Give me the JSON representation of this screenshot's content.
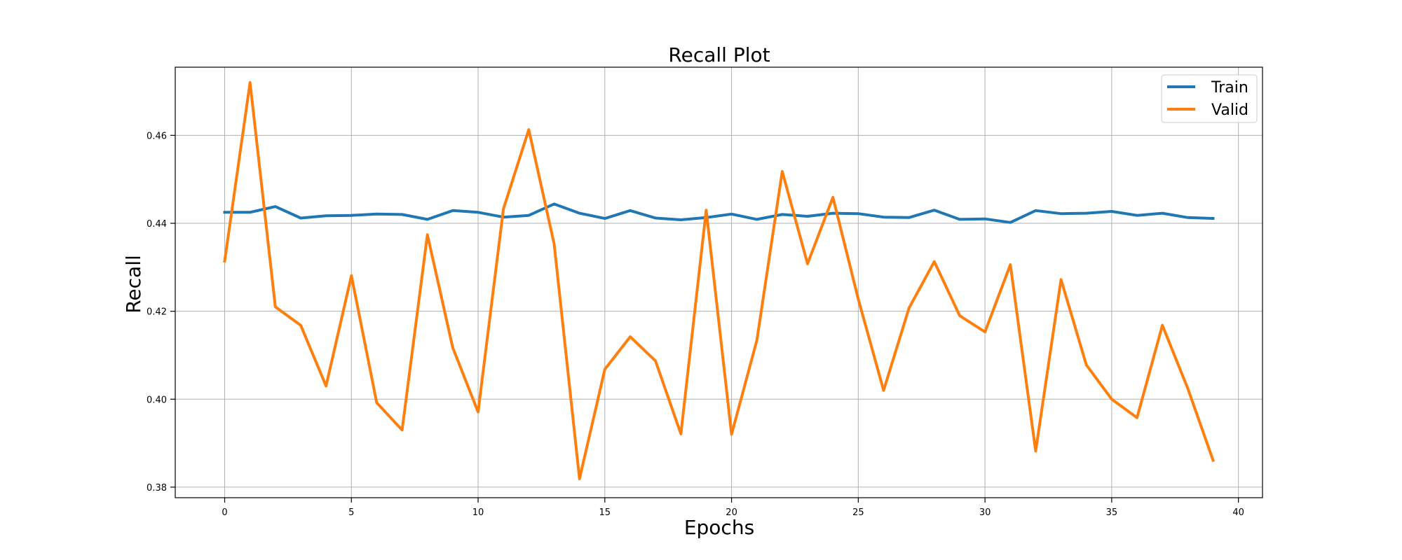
{
  "chart_data": {
    "type": "line",
    "title": "Recall Plot",
    "xlabel": "Epochs",
    "ylabel": "Recall",
    "xlim": [
      -1.95,
      40.95
    ],
    "ylim": [
      0.3776,
      0.4755
    ],
    "xticks": [
      0,
      5,
      10,
      15,
      20,
      25,
      30,
      35,
      40
    ],
    "yticks": [
      0.38,
      0.4,
      0.42,
      0.44,
      0.46
    ],
    "grid": true,
    "legend_position": "top-right",
    "x": [
      0,
      1,
      2,
      3,
      4,
      5,
      6,
      7,
      8,
      9,
      10,
      11,
      12,
      13,
      14,
      15,
      16,
      17,
      18,
      19,
      20,
      21,
      22,
      23,
      24,
      25,
      26,
      27,
      28,
      29,
      30,
      31,
      32,
      33,
      34,
      35,
      36,
      37,
      38,
      39
    ],
    "series": [
      {
        "name": "Train",
        "color": "#1f77b4",
        "values": [
          0.4425,
          0.4425,
          0.4438,
          0.4412,
          0.4417,
          0.4418,
          0.4421,
          0.442,
          0.4409,
          0.4429,
          0.4425,
          0.4414,
          0.4418,
          0.4444,
          0.4423,
          0.4411,
          0.4429,
          0.4412,
          0.4408,
          0.4413,
          0.4421,
          0.4409,
          0.442,
          0.4416,
          0.4423,
          0.4422,
          0.4414,
          0.4413,
          0.443,
          0.4409,
          0.441,
          0.4402,
          0.4429,
          0.4422,
          0.4423,
          0.4427,
          0.4418,
          0.4423,
          0.4413,
          0.4411
        ]
      },
      {
        "name": "Valid",
        "color": "#ff7f0e",
        "values": [
          0.4314,
          0.472,
          0.421,
          0.4168,
          0.403,
          0.4281,
          0.3992,
          0.393,
          0.4374,
          0.4117,
          0.3971,
          0.4433,
          0.4613,
          0.4353,
          0.3819,
          0.4068,
          0.4142,
          0.4087,
          0.3921,
          0.443,
          0.392,
          0.4134,
          0.4518,
          0.4308,
          0.4459,
          0.4228,
          0.402,
          0.4207,
          0.4313,
          0.419,
          0.4153,
          0.4306,
          0.3882,
          0.4272,
          0.4078,
          0.4,
          0.3958,
          0.4168,
          0.4025,
          0.3861
        ]
      }
    ]
  }
}
